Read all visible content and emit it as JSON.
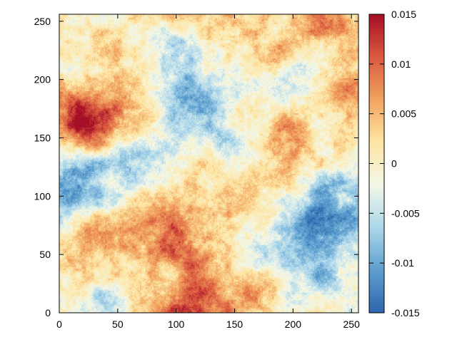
{
  "chart_data": {
    "type": "heatmap",
    "title": "",
    "xlabel": "",
    "ylabel": "",
    "grid_size": [
      256,
      256
    ],
    "xlim": [
      0,
      256
    ],
    "ylim": [
      0,
      256
    ],
    "x_ticks": [
      "0",
      "50",
      "100",
      "150",
      "200",
      "250"
    ],
    "y_ticks": [
      "0",
      "50",
      "100",
      "150",
      "200",
      "250"
    ],
    "x_tick_values": [
      0,
      50,
      100,
      150,
      200,
      250
    ],
    "y_tick_values": [
      0,
      50,
      100,
      150,
      200,
      250
    ],
    "colorbar": {
      "range": [
        -0.015,
        0.015
      ],
      "ticks": [
        "0.015",
        "0.01",
        "0.005",
        "0",
        "-0.005",
        "-0.01",
        "-0.015"
      ],
      "tick_values": [
        0.015,
        0.01,
        0.005,
        0,
        -0.005,
        -0.01,
        -0.015
      ],
      "colormap": "red-yellow-blue diverging",
      "colors": [
        "#2c65ad",
        "#5e9fcf",
        "#add7ea",
        "#f3f7e8",
        "#fde5a3",
        "#f1a35f",
        "#d9593f",
        "#a50f26"
      ]
    },
    "description_of_field": "Random smooth field; red/orange patches near (100,60), (150,100), (20,160), (180,240), (240,190); blue patches near (10,110), (130,150), (210,70), (220,20), (30,20)",
    "pattern_blobs": [
      {
        "x": 105,
        "y": 60,
        "value": 0.011
      },
      {
        "x": 110,
        "y": 5,
        "value": 0.012
      },
      {
        "x": 165,
        "y": 20,
        "value": 0.01
      },
      {
        "x": 145,
        "y": 100,
        "value": 0.007
      },
      {
        "x": 15,
        "y": 160,
        "value": 0.01
      },
      {
        "x": 25,
        "y": 175,
        "value": 0.009
      },
      {
        "x": 200,
        "y": 150,
        "value": 0.008
      },
      {
        "x": 245,
        "y": 190,
        "value": 0.01
      },
      {
        "x": 170,
        "y": 235,
        "value": 0.009
      },
      {
        "x": 230,
        "y": 245,
        "value": 0.008
      },
      {
        "x": 20,
        "y": 55,
        "value": 0.008
      },
      {
        "x": 10,
        "y": 110,
        "value": -0.01
      },
      {
        "x": 60,
        "y": 125,
        "value": -0.008
      },
      {
        "x": 135,
        "y": 145,
        "value": -0.009
      },
      {
        "x": 120,
        "y": 185,
        "value": -0.009
      },
      {
        "x": 205,
        "y": 70,
        "value": -0.01
      },
      {
        "x": 235,
        "y": 85,
        "value": -0.009
      },
      {
        "x": 225,
        "y": 25,
        "value": -0.008
      },
      {
        "x": 35,
        "y": 20,
        "value": -0.007
      },
      {
        "x": 210,
        "y": 195,
        "value": -0.006
      },
      {
        "x": 175,
        "y": 45,
        "value": -0.005
      }
    ]
  }
}
